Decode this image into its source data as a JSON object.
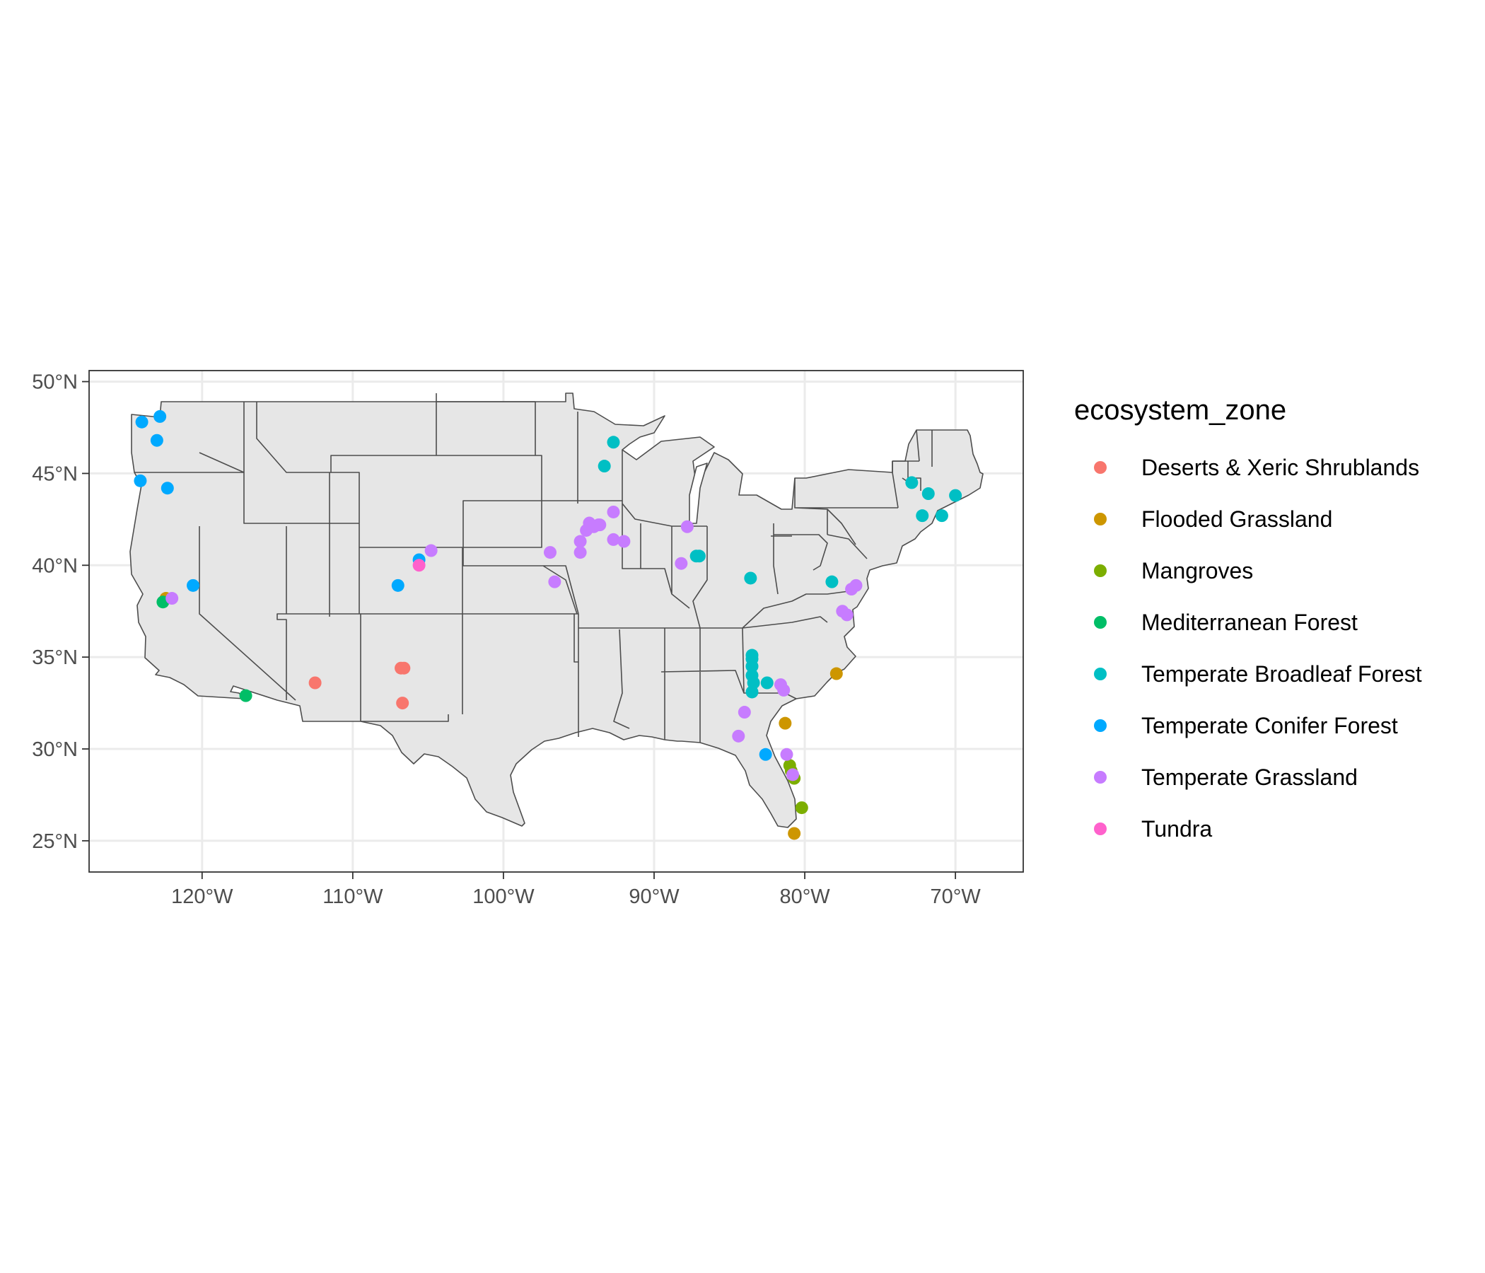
{
  "chart_data": {
    "type": "scatter",
    "projection": "equirectangular",
    "xlim": [
      -127.5,
      -65.5
    ],
    "ylim": [
      23.3,
      50.6
    ],
    "x_ticks": [
      {
        "value": -120,
        "label": "120°W"
      },
      {
        "value": -110,
        "label": "110°W"
      },
      {
        "value": -100,
        "label": "100°W"
      },
      {
        "value": -90,
        "label": "90°W"
      },
      {
        "value": -80,
        "label": "80°W"
      },
      {
        "value": -70,
        "label": "70°W"
      }
    ],
    "y_ticks": [
      {
        "value": 25,
        "label": "25°N"
      },
      {
        "value": 30,
        "label": "30°N"
      },
      {
        "value": 35,
        "label": "35°N"
      },
      {
        "value": 40,
        "label": "40°N"
      },
      {
        "value": 45,
        "label": "45°N"
      },
      {
        "value": 50,
        "label": "50°N"
      }
    ],
    "grid": true,
    "legend": {
      "title": "ecosystem_zone",
      "position": "right"
    },
    "series": [
      {
        "name": "Deserts & Xeric Shrublands",
        "color": "#F8766D",
        "points": [
          [
            -112.5,
            33.6
          ],
          [
            -106.8,
            34.4
          ],
          [
            -106.6,
            34.4
          ],
          [
            -106.7,
            32.5
          ]
        ]
      },
      {
        "name": "Flooded Grassland",
        "color": "#CD9600",
        "points": [
          [
            -122.4,
            38.2
          ],
          [
            -81.3,
            31.4
          ],
          [
            -77.9,
            34.1
          ],
          [
            -80.7,
            25.4
          ]
        ]
      },
      {
        "name": "Mangroves",
        "color": "#7CAE00",
        "points": [
          [
            -81.0,
            29.1
          ],
          [
            -80.9,
            28.8
          ],
          [
            -80.7,
            28.4
          ],
          [
            -80.2,
            26.8
          ]
        ]
      },
      {
        "name": "Mediterranean Forest",
        "color": "#00BE67",
        "points": [
          [
            -122.6,
            38.0
          ],
          [
            -117.1,
            32.9
          ]
        ]
      },
      {
        "name": "Temperate Broadleaf Forest",
        "color": "#00BFC4",
        "points": [
          [
            -92.7,
            46.7
          ],
          [
            -93.3,
            45.4
          ],
          [
            -87.2,
            40.5
          ],
          [
            -87.0,
            40.5
          ],
          [
            -83.6,
            39.3
          ],
          [
            -78.2,
            39.1
          ],
          [
            -83.5,
            35.1
          ],
          [
            -83.5,
            34.9
          ],
          [
            -83.5,
            34.5
          ],
          [
            -83.5,
            34.0
          ],
          [
            -83.4,
            33.6
          ],
          [
            -83.5,
            33.1
          ],
          [
            -82.5,
            33.6
          ],
          [
            -72.9,
            44.5
          ],
          [
            -71.8,
            43.9
          ],
          [
            -72.2,
            42.7
          ],
          [
            -70.9,
            42.7
          ],
          [
            -70.0,
            43.8
          ]
        ]
      },
      {
        "name": "Temperate Conifer Forest",
        "color": "#00A9FF",
        "points": [
          [
            -124.0,
            47.8
          ],
          [
            -122.8,
            48.1
          ],
          [
            -123.0,
            46.8
          ],
          [
            -124.1,
            44.6
          ],
          [
            -122.3,
            44.2
          ],
          [
            -120.6,
            38.9
          ],
          [
            -105.6,
            40.3
          ],
          [
            -107.0,
            38.9
          ],
          [
            -82.6,
            29.7
          ]
        ]
      },
      {
        "name": "Temperate Grassland",
        "color": "#C77CFF",
        "points": [
          [
            -122.0,
            38.2
          ],
          [
            -104.8,
            40.8
          ],
          [
            -96.9,
            40.7
          ],
          [
            -96.6,
            39.1
          ],
          [
            -94.9,
            41.3
          ],
          [
            -94.9,
            40.7
          ],
          [
            -94.5,
            41.9
          ],
          [
            -94.3,
            42.3
          ],
          [
            -94.0,
            42.1
          ],
          [
            -93.7,
            42.2
          ],
          [
            -93.6,
            42.2
          ],
          [
            -92.7,
            42.9
          ],
          [
            -92.7,
            41.4
          ],
          [
            -92.0,
            41.3
          ],
          [
            -87.8,
            42.1
          ],
          [
            -88.2,
            40.1
          ],
          [
            -77.5,
            37.5
          ],
          [
            -77.2,
            37.3
          ],
          [
            -76.9,
            38.7
          ],
          [
            -76.6,
            38.9
          ],
          [
            -81.6,
            33.5
          ],
          [
            -81.4,
            33.2
          ],
          [
            -84.0,
            32.0
          ],
          [
            -84.4,
            30.7
          ],
          [
            -81.2,
            29.7
          ],
          [
            -80.8,
            28.6
          ]
        ]
      },
      {
        "name": "Tundra",
        "color": "#FF61CC",
        "points": [
          [
            -105.6,
            40.0
          ]
        ]
      }
    ]
  }
}
